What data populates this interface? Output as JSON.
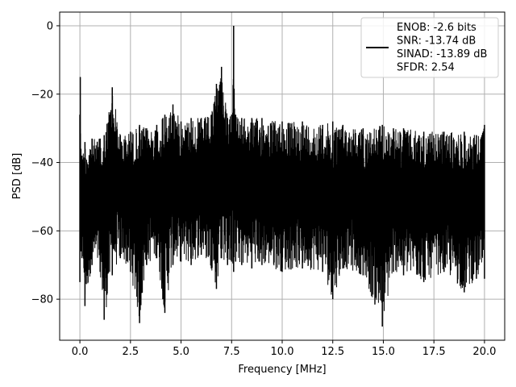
{
  "chart_data": {
    "type": "line",
    "xlabel": "Frequency [MHz]",
    "ylabel": "PSD [dB]",
    "xlim": [
      -1.0,
      21.0
    ],
    "ylim": [
      -92,
      4
    ],
    "xticks": [
      0.0,
      2.5,
      5.0,
      7.5,
      10.0,
      12.5,
      15.0,
      17.5,
      20.0
    ],
    "xtick_labels": [
      "0.0",
      "2.5",
      "5.0",
      "7.5",
      "10.0",
      "12.5",
      "15.0",
      "17.5",
      "20.0"
    ],
    "yticks": [
      0,
      -20,
      -40,
      -60,
      -80
    ],
    "ytick_labels": [
      "0",
      "−20",
      "−40",
      "−60",
      "−80"
    ],
    "grid": true,
    "legend_position": "top-right",
    "legend": [
      "ENOB: -2.6 bits",
      "SNR: -13.74 dB",
      "SINAD: -13.89 dB",
      "SFDR: 2.54"
    ],
    "line_color": "#000000",
    "series": [
      {
        "x": [
          0.0,
          0.02,
          0.05,
          0.1,
          0.25,
          0.6,
          1.0,
          1.2,
          1.6,
          2.0,
          2.5,
          2.95,
          3.3,
          3.8,
          4.1,
          4.2,
          4.6,
          5.0,
          5.5,
          6.0,
          6.5,
          6.75,
          7.0,
          7.3,
          7.5,
          7.6,
          7.7,
          8.0,
          8.5,
          9.0,
          10.0,
          11.0,
          12.0,
          12.5,
          13.0,
          14.0,
          14.95,
          15.5,
          16.0,
          17.0,
          18.0,
          19.0,
          19.6,
          20.0
        ],
        "y_max": [
          -26,
          -15,
          -36,
          -38,
          -34,
          -33,
          -33,
          -32,
          -18,
          -32,
          -31,
          -29,
          -30,
          -29,
          -27,
          -26,
          -23,
          -28,
          -27,
          -27,
          -26,
          -17,
          -12,
          -27,
          -26,
          0,
          -26,
          -27,
          -27,
          -27,
          -28,
          -28,
          -29,
          -28,
          -29,
          -30,
          -29,
          -30,
          -30,
          -31,
          -31,
          -31,
          -32,
          -29
        ],
        "y_min": [
          -75,
          -60,
          -66,
          -68,
          -82,
          -70,
          -72,
          -86,
          -73,
          -68,
          -72,
          -87,
          -70,
          -68,
          -80,
          -84,
          -70,
          -69,
          -70,
          -67,
          -71,
          -77,
          -68,
          -70,
          -69,
          -72,
          -69,
          -70,
          -71,
          -70,
          -72,
          -71,
          -72,
          -80,
          -71,
          -73,
          -88,
          -72,
          -73,
          -75,
          -72,
          -78,
          -74,
          -74
        ]
      }
    ]
  }
}
